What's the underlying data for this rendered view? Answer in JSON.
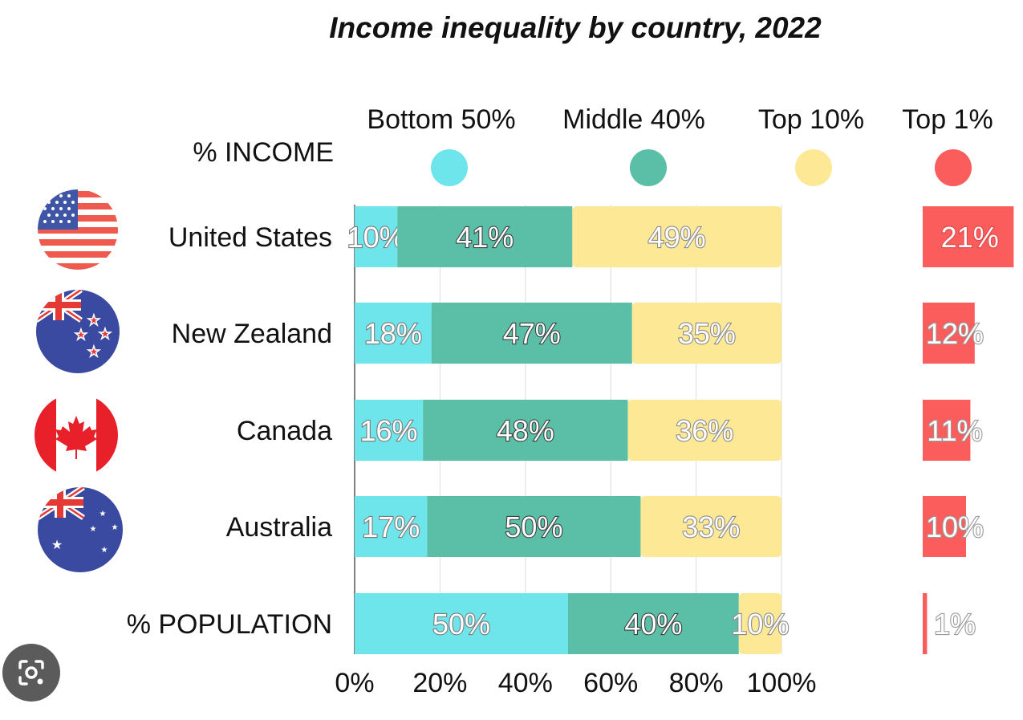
{
  "chart_data": {
    "type": "bar",
    "orientation": "horizontal",
    "stacked": true,
    "title": "Income inequality by country, 2022",
    "row_header": "% INCOME",
    "categories": [
      "United States",
      "New Zealand",
      "Canada",
      "Australia",
      "% POPULATION"
    ],
    "series": [
      {
        "name": "Bottom 50%",
        "color": "#6ee5ea",
        "values": [
          10,
          18,
          16,
          17,
          50
        ]
      },
      {
        "name": "Middle 40%",
        "color": "#5bbfa8",
        "values": [
          41,
          47,
          48,
          50,
          40
        ]
      },
      {
        "name": "Top 10%",
        "color": "#fde895",
        "values": [
          49,
          35,
          36,
          33,
          10
        ]
      }
    ],
    "separate_series": {
      "name": "Top 1%",
      "color": "#fb5d5d",
      "values": [
        21,
        12,
        11,
        10,
        1
      ]
    },
    "x_ticks": [
      "0%",
      "20%",
      "40%",
      "60%",
      "80%",
      "100%"
    ],
    "xlim": [
      0,
      100
    ],
    "grid": true,
    "legend_position": "top",
    "flags": [
      "us-flag-icon",
      "nz-flag-icon",
      "canada-flag-icon",
      "australia-flag-icon"
    ]
  }
}
